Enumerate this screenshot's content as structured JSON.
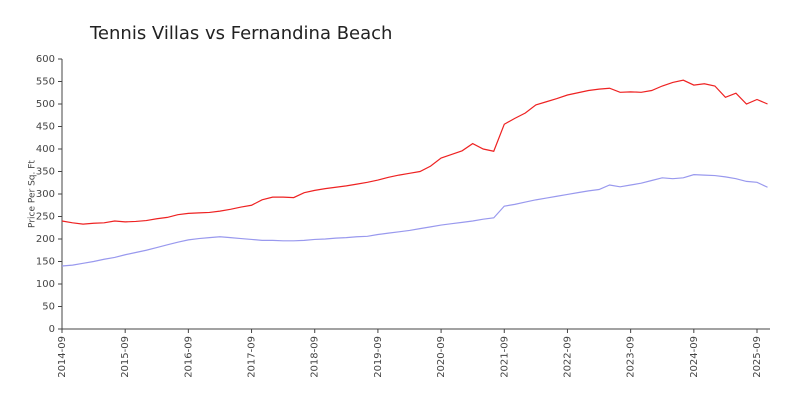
{
  "chart_data": {
    "type": "line",
    "title": "Tennis Villas vs Fernandina Beach",
    "y_label": "Price Per Sq. Ft",
    "x": [
      "2014-09",
      "2014-11",
      "2015-01",
      "2015-03",
      "2015-05",
      "2015-07",
      "2015-09",
      "2015-11",
      "2016-01",
      "2016-03",
      "2016-05",
      "2016-07",
      "2016-09",
      "2016-11",
      "2017-01",
      "2017-03",
      "2017-05",
      "2017-07",
      "2017-09",
      "2017-11",
      "2018-01",
      "2018-03",
      "2018-05",
      "2018-07",
      "2018-09",
      "2018-11",
      "2019-01",
      "2019-03",
      "2019-05",
      "2019-07",
      "2019-09",
      "2019-11",
      "2020-01",
      "2020-03",
      "2020-05",
      "2020-07",
      "2020-09",
      "2020-11",
      "2021-01",
      "2021-03",
      "2021-05",
      "2021-07",
      "2021-09",
      "2021-11",
      "2022-01",
      "2022-03",
      "2022-05",
      "2022-07",
      "2022-09",
      "2022-11",
      "2023-01",
      "2023-03",
      "2023-05",
      "2023-07",
      "2023-09",
      "2023-11",
      "2024-01",
      "2024-03",
      "2024-05",
      "2024-07",
      "2024-09",
      "2024-11",
      "2025-01",
      "2025-03",
      "2025-05",
      "2025-07",
      "2025-09",
      "2025-11"
    ],
    "series": [
      {
        "color": "#ee2222",
        "values": [
          240,
          236,
          233,
          235,
          236,
          240,
          238,
          239,
          241,
          245,
          248,
          254,
          257,
          258,
          259,
          262,
          266,
          271,
          275,
          287,
          293,
          293,
          292,
          303,
          308,
          312,
          315,
          318,
          322,
          326,
          331,
          337,
          342,
          346,
          350,
          362,
          380,
          388,
          396,
          412,
          400,
          395,
          455,
          468,
          480,
          498,
          505,
          512,
          520,
          525,
          530,
          533,
          535,
          526,
          527,
          526,
          530,
          540,
          548,
          553,
          542,
          545,
          540,
          515,
          524,
          500,
          510,
          500
        ]
      },
      {
        "color": "#9999ee",
        "values": [
          140,
          142,
          146,
          150,
          155,
          159,
          165,
          170,
          175,
          181,
          187,
          193,
          198,
          201,
          203,
          205,
          203,
          201,
          199,
          197,
          197,
          196,
          196,
          197,
          199,
          200,
          202,
          203,
          205,
          206,
          210,
          213,
          216,
          219,
          223,
          227,
          231,
          234,
          237,
          240,
          244,
          247,
          273,
          277,
          282,
          287,
          291,
          295,
          299,
          303,
          307,
          310,
          320,
          316,
          320,
          324,
          330,
          336,
          334,
          336,
          343,
          342,
          341,
          338,
          334,
          328,
          326,
          315
        ]
      }
    ],
    "xticks": [
      "2014-09",
      "2015-09",
      "2016-09",
      "2017-09",
      "2018-09",
      "2019-09",
      "2020-09",
      "2021-09",
      "2022-09",
      "2023-09",
      "2024-09",
      "2025-09"
    ],
    "ylim": [
      0,
      600
    ],
    "yticks": [
      0,
      50,
      100,
      150,
      200,
      250,
      300,
      350,
      400,
      450,
      500,
      550,
      600
    ],
    "grid": false
  }
}
